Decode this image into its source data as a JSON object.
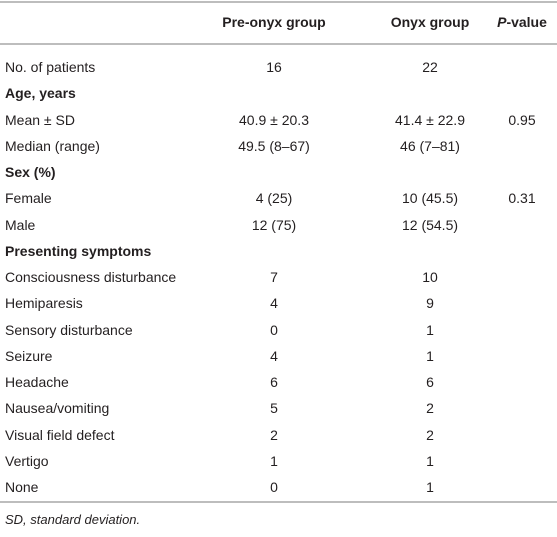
{
  "table": {
    "header": {
      "pre": "Pre-onyx group",
      "onyx": "Onyx group",
      "p_italic": "P",
      "p_rest": "-value"
    },
    "rows": [
      {
        "label": "No. of patients",
        "pre": "16",
        "onyx": "22"
      },
      {
        "heading": "Age, years"
      },
      {
        "label": "Mean ± SD",
        "pre": "40.9 ± 20.3",
        "onyx": "41.4 ± 22.9",
        "p": "0.95"
      },
      {
        "label": "Median (range)",
        "pre": "49.5 (8–67)",
        "onyx": "46 (7–81)"
      },
      {
        "heading": "Sex (%)"
      },
      {
        "label": "Female",
        "pre": "4 (25)",
        "onyx": "10 (45.5)",
        "p": "0.31"
      },
      {
        "label": "Male",
        "pre": "12 (75)",
        "onyx": "12 (54.5)"
      },
      {
        "heading": "Presenting symptoms"
      },
      {
        "label": "Consciousness disturbance",
        "pre": "7",
        "onyx": "10"
      },
      {
        "label": "Hemiparesis",
        "pre": "4",
        "onyx": "9"
      },
      {
        "label": "Sensory disturbance",
        "pre": "0",
        "onyx": "1"
      },
      {
        "label": "Seizure",
        "pre": "4",
        "onyx": "1"
      },
      {
        "label": "Headache",
        "pre": "6",
        "onyx": "6"
      },
      {
        "label": "Nausea/vomiting",
        "pre": "5",
        "onyx": "2"
      },
      {
        "label": "Visual field defect",
        "pre": "2",
        "onyx": "2"
      },
      {
        "label": "Vertigo",
        "pre": "1",
        "onyx": "1"
      },
      {
        "label": "None",
        "pre": "0",
        "onyx": "1"
      }
    ],
    "footnote": "SD, standard deviation."
  }
}
